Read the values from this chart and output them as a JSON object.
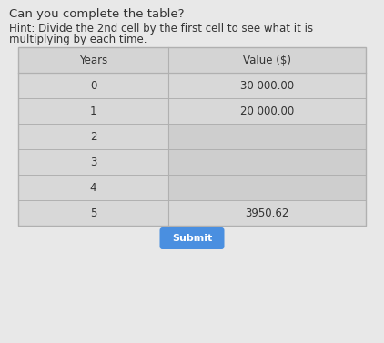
{
  "title": "Can you complete the table?",
  "hint_line1": "Hint: Divide the 2nd cell by the first cell to see what it is",
  "hint_line2": "multiplying by each time.",
  "col_headers": [
    "Years",
    "Value ($)"
  ],
  "rows": [
    [
      "0",
      "30 000.00"
    ],
    [
      "1",
      "20 000.00"
    ],
    [
      "2",
      ""
    ],
    [
      "3",
      ""
    ],
    [
      "4",
      ""
    ],
    [
      "5",
      "3950.62"
    ]
  ],
  "submit_label": "Submit",
  "bg_color": "#e8e8e8",
  "header_row_bg": "#d4d4d4",
  "left_cell_bg": "#d8d8d8",
  "right_cell_filled_bg": "#d8d8d8",
  "right_cell_empty_bg": "#cecece",
  "border_color": "#b0b0b0",
  "text_color": "#333333",
  "submit_bg": "#4a8fe0",
  "submit_text": "#ffffff",
  "title_fontsize": 9.5,
  "hint_fontsize": 8.5,
  "cell_fontsize": 8.5,
  "header_fontsize": 8.5
}
